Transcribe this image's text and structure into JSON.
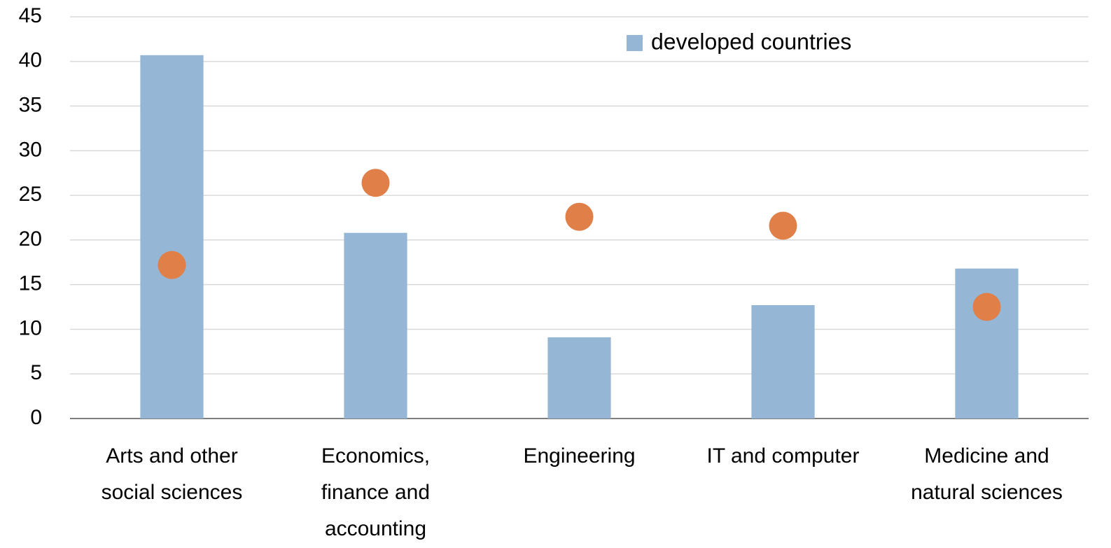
{
  "chart_data": {
    "type": "bar",
    "categories": [
      "Arts and other social sciences",
      "Economics, finance and accounting",
      "Engineering",
      "IT and computer",
      "Medicine and natural sciences"
    ],
    "series": [
      {
        "name": "developed countries",
        "color": "#95b6d4",
        "values": [
          40.7,
          20.8,
          9.1,
          12.7,
          16.8
        ]
      },
      {
        "color": "#e07f47",
        "values": [
          17.2,
          26.4,
          22.6,
          21.6,
          12.5
        ]
      }
    ],
    "ylim": [
      0,
      45
    ],
    "yticks": [
      0,
      5,
      10,
      15,
      20,
      25,
      30,
      35,
      40,
      45
    ],
    "grid": true,
    "legend": "top-right"
  }
}
